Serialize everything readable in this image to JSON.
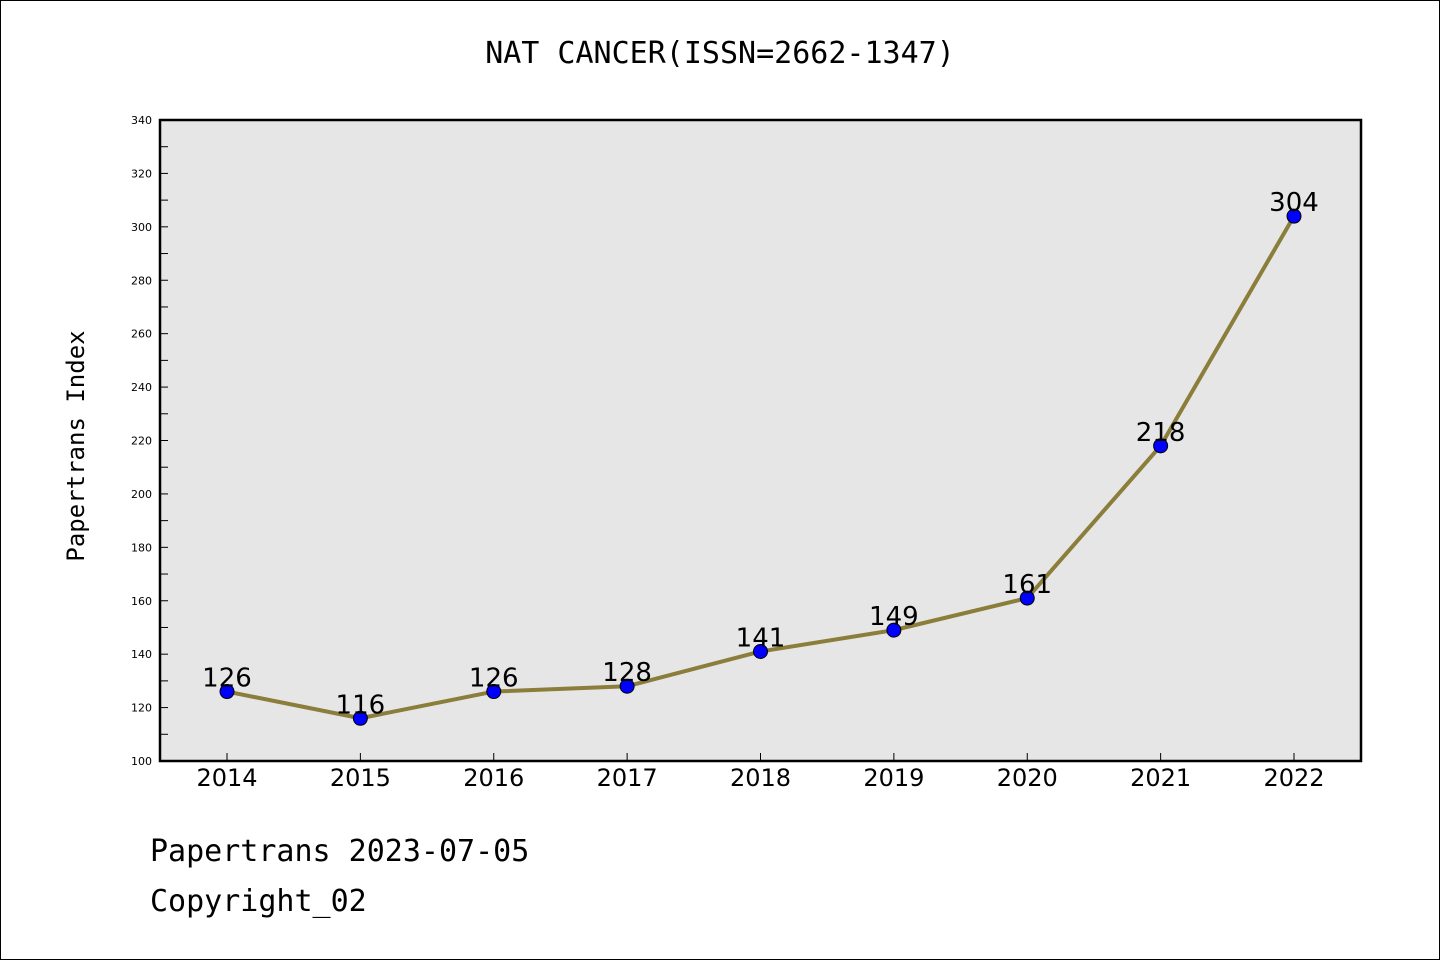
{
  "chart_data": {
    "type": "line",
    "title": "NAT CANCER(ISSN=2662-1347)",
    "xlabel": "",
    "ylabel": "Papertrans Index",
    "categories": [
      "2014",
      "2015",
      "2016",
      "2017",
      "2018",
      "2019",
      "2020",
      "2021",
      "2022"
    ],
    "series": [
      {
        "values": [
          126,
          116,
          126,
          128,
          141,
          149,
          161,
          218,
          304
        ]
      }
    ],
    "ylim": [
      100,
      340
    ],
    "yticks": [
      100,
      120,
      140,
      160,
      180,
      200,
      220,
      240,
      260,
      280,
      300,
      320,
      340
    ],
    "grid": false,
    "legend": "none",
    "colors": {
      "line": "#8B7D3A",
      "marker": "#0000FF",
      "plot_background": "#E6E6E6"
    }
  },
  "footer": {
    "date_line": "Papertrans 2023-07-05",
    "copyright_line": "Copyright_02"
  }
}
